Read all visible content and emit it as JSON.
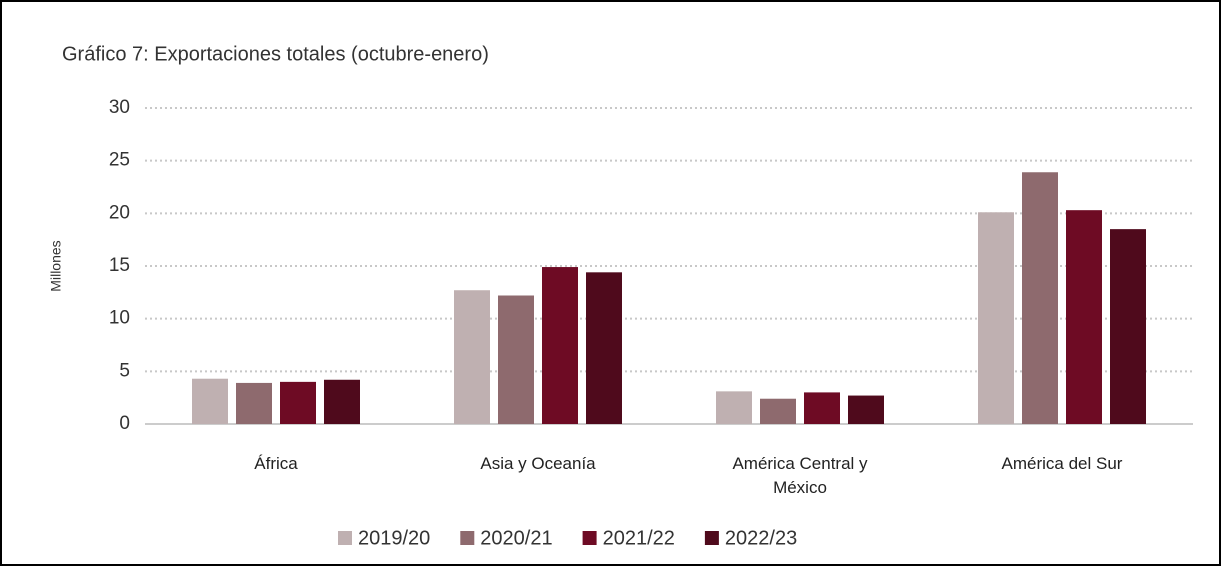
{
  "chart_data": {
    "type": "bar",
    "title": "Gráfico  7: Exportaciones totales (octubre-enero)",
    "y_label": "Millones",
    "categories": [
      "África",
      "Asia y Oceanía",
      "América Central y México",
      "América del Sur"
    ],
    "series": [
      {
        "name": "2019/20",
        "color": "#bfb0b1",
        "values": [
          4.3,
          12.7,
          3.1,
          20.1
        ]
      },
      {
        "name": "2020/21",
        "color": "#8e6a6e",
        "values": [
          3.9,
          12.2,
          2.4,
          23.9
        ]
      },
      {
        "name": "2021/22",
        "color": "#6e0b24",
        "values": [
          4.0,
          14.9,
          3.0,
          20.3
        ]
      },
      {
        "name": "2022/23",
        "color": "#4f0a1c",
        "values": [
          4.2,
          14.4,
          2.7,
          18.5
        ]
      }
    ],
    "ylim": [
      0,
      30
    ],
    "yticks": [
      0,
      5,
      10,
      15,
      20,
      25,
      30
    ],
    "grid": true,
    "legend": "bottom"
  }
}
